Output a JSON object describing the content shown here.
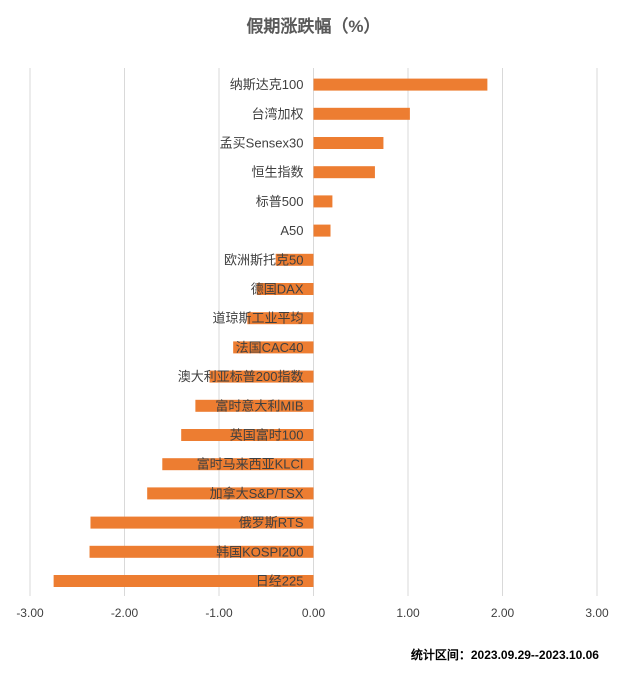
{
  "chart_data": {
    "type": "bar",
    "orientation": "horizontal",
    "title": "假期涨跌幅（%）",
    "xlabel": "",
    "ylabel": "",
    "xlim": [
      -3,
      3
    ],
    "x_ticks": [
      "-3.00",
      "-2.00",
      "-1.00",
      "0.00",
      "1.00",
      "2.00",
      "3.00"
    ],
    "x_tick_values": [
      -3,
      -2,
      -1,
      0,
      1,
      2,
      3
    ],
    "grid": true,
    "bar_color": "#ED7D31",
    "categories": [
      "纳斯达克100",
      "台湾加权",
      "孟买Sensex30",
      "恒生指数",
      "标普500",
      "A50",
      "欧洲斯托克50",
      "德国DAX",
      "道琼斯工业平均",
      "法国CAC40",
      "澳大利亚标普200指数",
      "富时意大利MIB",
      "英国富时100",
      "富时马来西亚KLCI",
      "加拿大S&P/TSX",
      "俄罗斯RTS",
      "韩国KOSPI200",
      "日经225"
    ],
    "values": [
      1.84,
      1.02,
      0.74,
      0.65,
      0.2,
      0.18,
      -0.4,
      -0.6,
      -0.7,
      -0.85,
      -1.1,
      -1.25,
      -1.4,
      -1.6,
      -1.76,
      -2.36,
      -2.37,
      -2.75
    ]
  },
  "footnote": "统计区间：2023.09.29--2023.10.06"
}
